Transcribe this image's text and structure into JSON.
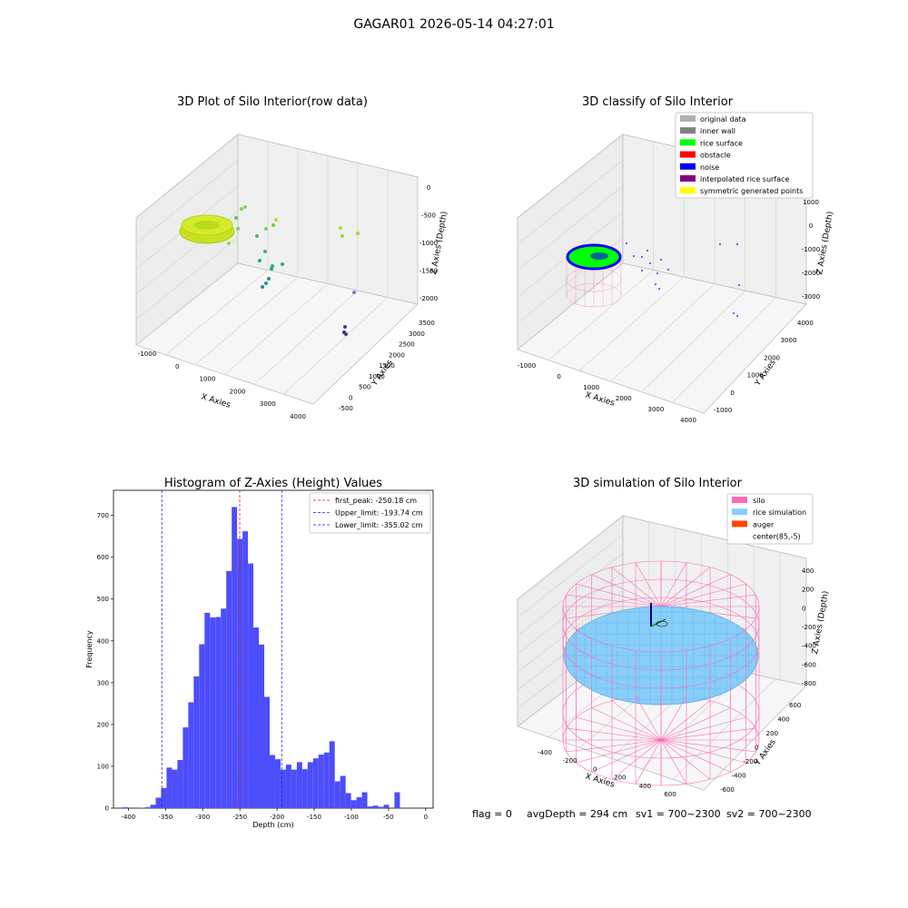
{
  "figure": {
    "suptitle": "GAGAR01 2026-05-14 04:27:01",
    "status": {
      "flag": "flag = 0",
      "avg_depth": "avgDepth = 294 cm",
      "sv1": "sv1 = 700~2300",
      "sv2": "sv2 = 700~2300"
    }
  },
  "colors": {
    "hist_bar": "#4d4dfb",
    "first_peak": "#e41a1c",
    "limits": "#1f1fe0",
    "silo": "#ff69b4",
    "rice_simulation": "#87cefa",
    "auger": "#ff4500",
    "rice_surface": "#00ff00",
    "noise": "#0000ff",
    "obstacle": "#ff0000",
    "inner_wall": "#808080",
    "original_data": "#b0b0b0",
    "interpolated": "#800080",
    "symmetric": "#ffff00",
    "row_data_ring": "#c7e022"
  },
  "chart_data": [
    {
      "type": "scatter",
      "title": "3D Plot of Silo Interior(row data)",
      "xlabel": "X Axies",
      "ylabel": "Y Axies",
      "zlabel": "Z Axies (Depth)",
      "x_ticks": [
        "-1000",
        "0",
        "1000",
        "2000",
        "3000",
        "4000"
      ],
      "y_ticks": [
        "-500",
        "0",
        "500",
        "1000",
        "1500",
        "2000",
        "2500",
        "3000",
        "3500"
      ],
      "z_ticks": [
        "0",
        "-500",
        "-1000",
        "-1500",
        "-2000"
      ]
    },
    {
      "type": "scatter",
      "title": "3D classify of Silo Interior",
      "xlabel": "X Axies",
      "ylabel": "Y Axies",
      "zlabel": "Z Axies (Depth)",
      "x_ticks": [
        "-1000",
        "0",
        "1000",
        "2000",
        "3000",
        "4000"
      ],
      "y_ticks": [
        "-1000",
        "0",
        "1000",
        "2000",
        "3000",
        "4000"
      ],
      "z_ticks": [
        "1000",
        "0",
        "-1000",
        "-2000",
        "-3000"
      ],
      "legend": [
        {
          "label": "original data",
          "color": "#b0b0b0"
        },
        {
          "label": "inner wall",
          "color": "#808080"
        },
        {
          "label": "rice surface",
          "color": "#00ff00"
        },
        {
          "label": "obstacle",
          "color": "#ff0000"
        },
        {
          "label": "noise",
          "color": "#0000ff"
        },
        {
          "label": "interpolated rice surface",
          "color": "#800080"
        },
        {
          "label": "symmetric generated points",
          "color": "#ffff00"
        }
      ],
      "legend_position": "top-right"
    },
    {
      "type": "bar",
      "title": "Histogram of Z-Axies (Height) Values",
      "xlabel": "Depth (cm)",
      "ylabel": "Frequency",
      "xlim": [
        -420,
        10
      ],
      "ylim": [
        0,
        760
      ],
      "x_ticks": [
        -400,
        -350,
        -300,
        -250,
        -200,
        -150,
        -100,
        -50,
        0
      ],
      "y_ticks": [
        0,
        100,
        200,
        300,
        400,
        500,
        600,
        700
      ],
      "bin_start": -407,
      "bin_width": 7.3,
      "values": [
        2,
        0,
        0,
        1,
        2,
        8,
        25,
        48,
        97,
        92,
        115,
        193,
        253,
        315,
        392,
        467,
        456,
        457,
        477,
        567,
        720,
        644,
        662,
        585,
        432,
        391,
        266,
        127,
        117,
        92,
        104,
        92,
        110,
        93,
        110,
        119,
        128,
        133,
        160,
        64,
        77,
        36,
        19,
        26,
        38,
        4,
        6,
        3,
        8,
        0,
        38
      ],
      "vlines": [
        {
          "label": "first_peak: -250.18 cm",
          "x": -250.18,
          "color": "#e41a1c"
        },
        {
          "label": "Upper_limit: -193.74 cm",
          "x": -193.74,
          "color": "#1f1fe0"
        },
        {
          "label": "Lower_limit: -355.02 cm",
          "x": -355.02,
          "color": "#1f1fe0"
        }
      ],
      "legend_position": "top-right"
    },
    {
      "type": "area",
      "title": "3D simulation of Silo Interior",
      "xlabel": "X Axies",
      "ylabel": "Y Axies",
      "zlabel": "Z Axies (Depth)",
      "x_ticks": [
        "-400",
        "-200",
        "0",
        "200",
        "400",
        "600"
      ],
      "y_ticks": [
        "-600",
        "-400",
        "-200",
        "0",
        "200",
        "400",
        "600"
      ],
      "z_ticks": [
        "400",
        "200",
        "0",
        "-200",
        "-400",
        "-600",
        "-800"
      ],
      "legend": [
        {
          "label": "silo",
          "color": "#ff69b4"
        },
        {
          "label": "rice simulation",
          "color": "#87cefa"
        },
        {
          "label": "auger",
          "color": "#ff4500"
        },
        {
          "label": "center(85,-5)",
          "color": ""
        }
      ],
      "legend_position": "top-right"
    }
  ]
}
